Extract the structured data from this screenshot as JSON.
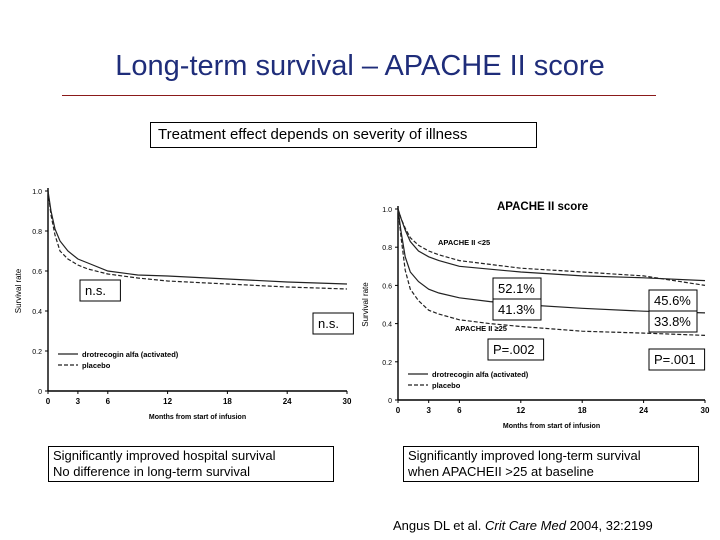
{
  "slide": {
    "title": "Long-term survival – APACHE II score",
    "subtitle": "Treatment effect depends on severity of illness",
    "caption_left": [
      "Significantly improved hospital survival",
      "No difference in long-term survival"
    ],
    "caption_right": [
      "Significantly improved long-term survival",
      "when APACHEII >25 at baseline"
    ],
    "citation": {
      "authors": "Angus DL et al.",
      "journal": "Crit Care Med",
      "rest": "2004, 32:2199"
    },
    "colors": {
      "title": "#1f2d7a",
      "rule": "#8b1a1a"
    }
  },
  "chart_data": [
    {
      "type": "line",
      "title": "",
      "xlabel": "Months from start of infusion",
      "ylabel": "Survival rate",
      "xlim": [
        0,
        30
      ],
      "ylim": [
        0,
        1.0
      ],
      "xticks": [
        0,
        3,
        6,
        12,
        18,
        24,
        30
      ],
      "yticks": [
        0,
        0.2,
        0.4,
        0.6,
        0.8,
        1.0
      ],
      "ytick_labels": [
        "0",
        "0.2",
        "0.4",
        "0.6",
        "0.8",
        "1.0"
      ],
      "grid": false,
      "legend_placement": "bottom-left",
      "annotations": [
        "n.s.",
        "n.s."
      ],
      "series": [
        {
          "name": "drotrecogin alfa (activated)",
          "style": "solid",
          "x": [
            0,
            0.3,
            0.7,
            1.2,
            2,
            3,
            4,
            6,
            9,
            12,
            18,
            24,
            30
          ],
          "y": [
            1.0,
            0.9,
            0.81,
            0.75,
            0.7,
            0.66,
            0.64,
            0.6,
            0.58,
            0.575,
            0.56,
            0.545,
            0.535
          ]
        },
        {
          "name": "placebo",
          "style": "dashed",
          "x": [
            0,
            0.3,
            0.7,
            1.2,
            2,
            3,
            4,
            6,
            9,
            12,
            18,
            24,
            30
          ],
          "y": [
            1.0,
            0.88,
            0.78,
            0.7,
            0.66,
            0.63,
            0.61,
            0.585,
            0.565,
            0.55,
            0.535,
            0.52,
            0.51
          ]
        }
      ]
    },
    {
      "type": "line",
      "title": "APACHE II score",
      "xlabel": "Months from start of infusion",
      "ylabel": "Survival rate",
      "xlim": [
        0,
        30
      ],
      "ylim": [
        0,
        1.0
      ],
      "xticks": [
        0,
        3,
        6,
        12,
        18,
        24,
        30
      ],
      "yticks": [
        0,
        0.2,
        0.4,
        0.6,
        0.8,
        1.0
      ],
      "ytick_labels": [
        "0",
        "0.2",
        "0.4",
        "0.6",
        "0.8",
        "1.0"
      ],
      "grid": false,
      "legend_placement": "bottom-left",
      "group_labels": [
        "APACHE II <25",
        "APACHE II ≥25"
      ],
      "annotations": [
        "52.1%",
        "41.3%",
        "P=.002",
        "45.6%",
        "33.8%",
        "P=.001"
      ],
      "series": [
        {
          "name": "drotrecogin alfa (activated)",
          "group": "APACHE II <25",
          "style": "solid",
          "x": [
            0,
            0.3,
            0.7,
            1.2,
            2,
            3,
            4,
            6,
            9,
            12,
            18,
            24,
            30
          ],
          "y": [
            1.0,
            0.95,
            0.89,
            0.83,
            0.78,
            0.75,
            0.73,
            0.7,
            0.685,
            0.67,
            0.65,
            0.64,
            0.625
          ]
        },
        {
          "name": "placebo",
          "group": "APACHE II <25",
          "style": "dashed",
          "x": [
            0,
            0.3,
            0.7,
            1.2,
            2,
            3,
            4,
            6,
            9,
            12,
            18,
            24,
            30
          ],
          "y": [
            1.0,
            0.95,
            0.9,
            0.85,
            0.81,
            0.78,
            0.76,
            0.73,
            0.71,
            0.69,
            0.67,
            0.65,
            0.6
          ]
        },
        {
          "name": "drotrecogin alfa (activated)",
          "group": "APACHE II ≥25",
          "style": "solid",
          "x": [
            0,
            0.3,
            0.7,
            1.2,
            2,
            3,
            4,
            6,
            9,
            12,
            18,
            24,
            30
          ],
          "y": [
            1.0,
            0.88,
            0.75,
            0.67,
            0.62,
            0.58,
            0.56,
            0.535,
            0.515,
            0.5,
            0.48,
            0.465,
            0.456
          ]
        },
        {
          "name": "placebo",
          "group": "APACHE II ≥25",
          "style": "dashed",
          "x": [
            0,
            0.3,
            0.7,
            1.2,
            2,
            3,
            4,
            6,
            9,
            12,
            18,
            24,
            30
          ],
          "y": [
            1.0,
            0.85,
            0.68,
            0.58,
            0.52,
            0.47,
            0.45,
            0.42,
            0.4,
            0.385,
            0.36,
            0.35,
            0.338
          ]
        }
      ]
    }
  ]
}
